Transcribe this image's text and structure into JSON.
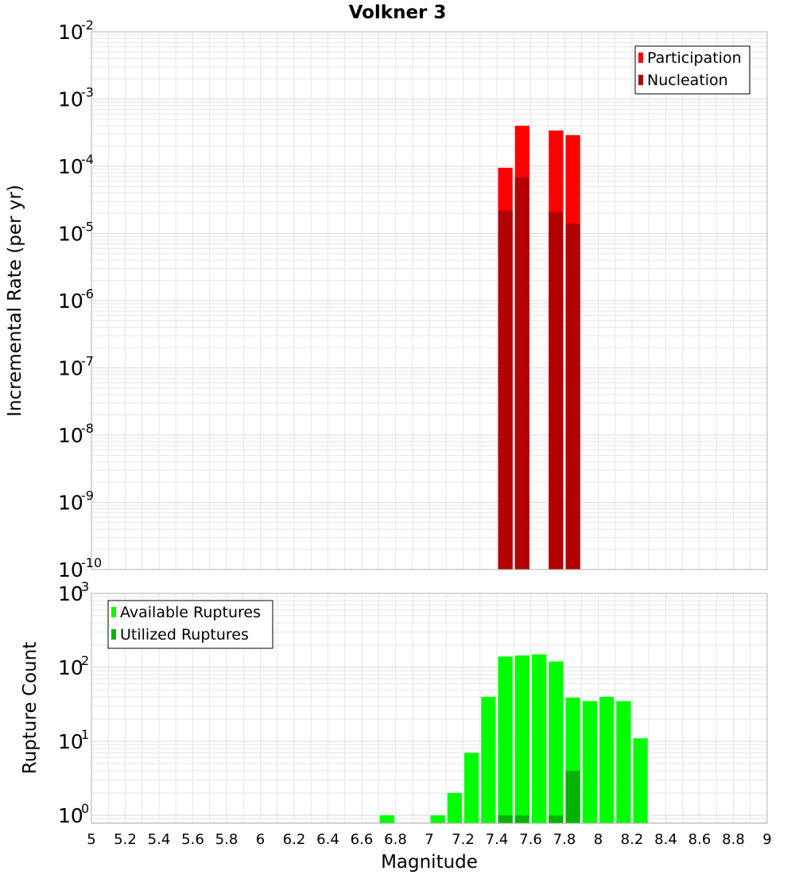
{
  "title": "Volkner 3",
  "xlabel": "Magnitude",
  "colors": {
    "participation": "#ff0000",
    "nucleation": "#b30000",
    "available": "#00ff00",
    "utilized": "#00b300",
    "grid": "#e6e6e6",
    "frame": "#b0b0b0"
  },
  "x_tick_labels": [
    "5",
    "5.2",
    "5.4",
    "5.6",
    "5.8",
    "6",
    "6.2",
    "6.4",
    "6.6",
    "6.8",
    "7",
    "7.2",
    "7.4",
    "7.6",
    "7.8",
    "8",
    "8.2",
    "8.4",
    "8.6",
    "8.8",
    "9"
  ],
  "chart_data": [
    {
      "type": "bar",
      "name": "rate-panel",
      "ylabel": "Incremental Rate (per yr)",
      "yscale": "log",
      "xlim": [
        5,
        9
      ],
      "ylim": [
        1e-10,
        0.01
      ],
      "y_tick_exponents": [
        "-10",
        "-9",
        "-8",
        "-7",
        "-6",
        "-5",
        "-4",
        "-3",
        "-2"
      ],
      "bin_width": 0.1,
      "legend_position": "top-right",
      "series": [
        {
          "name": "Participation",
          "x": [
            7.45,
            7.55,
            7.75,
            7.85
          ],
          "values": [
            9.5e-05,
            0.0004,
            0.00034,
            0.00029
          ]
        },
        {
          "name": "Nucleation",
          "x": [
            7.45,
            7.55,
            7.75,
            7.85
          ],
          "values": [
            2.2e-05,
            6.8e-05,
            2.1e-05,
            1.4e-05
          ]
        }
      ]
    },
    {
      "type": "bar",
      "name": "count-panel",
      "ylabel": "Rupture Count",
      "yscale": "log",
      "xlim": [
        5,
        9
      ],
      "ylim": [
        0.78,
        1000
      ],
      "y_tick_exponents": [
        "0",
        "1",
        "2",
        "3"
      ],
      "bin_width": 0.1,
      "legend_position": "top-left",
      "series": [
        {
          "name": "Available Ruptures",
          "x": [
            6.75,
            7.05,
            7.15,
            7.25,
            7.35,
            7.45,
            7.55,
            7.65,
            7.75,
            7.85,
            7.95,
            8.05,
            8.15,
            8.25
          ],
          "values": [
            1,
            1,
            2,
            7,
            40,
            140,
            145,
            150,
            120,
            39,
            35,
            40,
            35,
            11
          ]
        },
        {
          "name": "Utilized Ruptures",
          "x": [
            7.45,
            7.55,
            7.75,
            7.85
          ],
          "values": [
            1,
            1,
            1,
            4
          ]
        }
      ]
    }
  ]
}
